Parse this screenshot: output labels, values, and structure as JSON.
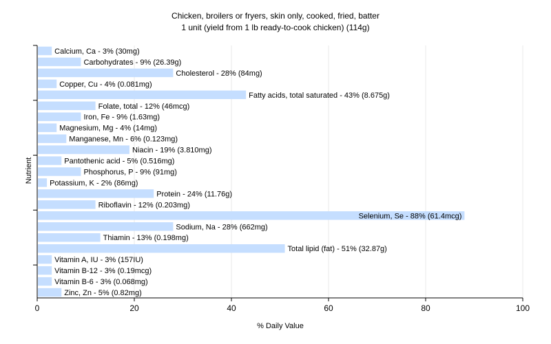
{
  "chart_data": {
    "type": "bar",
    "orientation": "horizontal",
    "title": "Chicken, broilers or fryers, skin only, cooked, fried, batter",
    "subtitle": "1 unit (yield from 1 lb ready-to-cook chicken) (114g)",
    "xlabel": "% Daily Value",
    "ylabel": "Nutrient",
    "xlim": [
      0,
      100
    ],
    "xticks": [
      0,
      20,
      40,
      60,
      80,
      100
    ],
    "grid": true,
    "bar_color": "#c5deff",
    "grid_color": "#e8e8e8",
    "categories": [
      "Calcium, Ca",
      "Carbohydrates",
      "Cholesterol",
      "Copper, Cu",
      "Fatty acids, total saturated",
      "Folate, total",
      "Iron, Fe",
      "Magnesium, Mg",
      "Manganese, Mn",
      "Niacin",
      "Pantothenic acid",
      "Phosphorus, P",
      "Potassium, K",
      "Protein",
      "Riboflavin",
      "Selenium, Se",
      "Sodium, Na",
      "Thiamin",
      "Total lipid (fat)",
      "Vitamin A, IU",
      "Vitamin B-12",
      "Vitamin B-6",
      "Zinc, Zn"
    ],
    "values": [
      3,
      9,
      28,
      4,
      43,
      12,
      9,
      4,
      6,
      19,
      5,
      9,
      2,
      24,
      12,
      88,
      28,
      13,
      51,
      3,
      3,
      3,
      5
    ],
    "labels": [
      "Calcium, Ca - 3% (30mg)",
      "Carbohydrates - 9% (26.39g)",
      "Cholesterol - 28% (84mg)",
      "Copper, Cu - 4% (0.081mg)",
      "Fatty acids, total saturated - 43% (8.675g)",
      "Folate, total - 12% (46mcg)",
      "Iron, Fe - 9% (1.63mg)",
      "Magnesium, Mg - 4% (14mg)",
      "Manganese, Mn - 6% (0.123mg)",
      "Niacin - 19% (3.810mg)",
      "Pantothenic acid - 5% (0.516mg)",
      "Phosphorus, P - 9% (91mg)",
      "Potassium, K - 2% (86mg)",
      "Protein - 24% (11.76g)",
      "Riboflavin - 12% (0.203mg)",
      "Selenium, Se - 88% (61.4mcg)",
      "Sodium, Na - 28% (662mg)",
      "Thiamin - 13% (0.198mg)",
      "Total lipid (fat) - 51% (32.87g)",
      "Vitamin A, IU - 3% (157IU)",
      "Vitamin B-12 - 3% (0.19mcg)",
      "Vitamin B-6 - 3% (0.068mg)",
      "Zinc, Zn - 5% (0.82mg)"
    ]
  }
}
